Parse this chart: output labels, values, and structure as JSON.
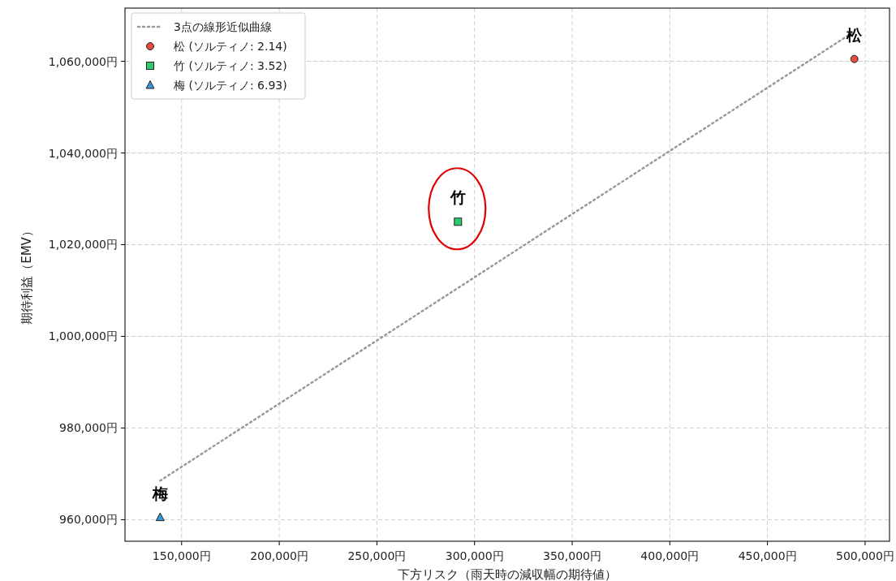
{
  "chart_data": {
    "type": "scatter",
    "xlabel": "下方リスク（雨天時の減収幅の期待値）",
    "ylabel": "期待利益（EMV）",
    "series": [
      {
        "name": "3点の線形近似曲線",
        "type": "line",
        "color": "#999999",
        "line_style": "dotted",
        "marker": "none",
        "x": [
          139000,
          494500
        ],
        "values": [
          968500,
          1066500
        ]
      },
      {
        "name": "松 (ソルティノ: 2.14)",
        "color": "#e74c3c",
        "marker": "circle",
        "x": [
          494500
        ],
        "values": [
          1060500
        ]
      },
      {
        "name": "竹 (ソルティノ: 3.52)",
        "color": "#2ecc71",
        "marker": "square",
        "x": [
          291500
        ],
        "values": [
          1025000
        ]
      },
      {
        "name": "梅 (ソルティノ: 6.93)",
        "color": "#3498db",
        "marker": "triangle",
        "x": [
          139000
        ],
        "values": [
          960500
        ]
      }
    ],
    "annotations": [
      {
        "text": "松",
        "x": 494500,
        "y": 1060500
      },
      {
        "text": "竹",
        "x": 291500,
        "y": 1025000
      },
      {
        "text": "梅",
        "x": 139000,
        "y": 960500
      }
    ],
    "xlim": [
      121000,
      512500
    ],
    "ylim": [
      955300,
      1071600
    ],
    "xticks": [
      {
        "value": 150000,
        "label": "150,000円"
      },
      {
        "value": 200000,
        "label": "200,000円"
      },
      {
        "value": 250000,
        "label": "250,000円"
      },
      {
        "value": 300000,
        "label": "300,000円"
      },
      {
        "value": 350000,
        "label": "350,000円"
      },
      {
        "value": 400000,
        "label": "400,000円"
      },
      {
        "value": 450000,
        "label": "450,000円"
      },
      {
        "value": 500000,
        "label": "500,000円"
      }
    ],
    "yticks": [
      {
        "value": 960000,
        "label": "960,000円"
      },
      {
        "value": 980000,
        "label": "980,000円"
      },
      {
        "value": 1000000,
        "label": "1,000,000円"
      },
      {
        "value": 1020000,
        "label": "1,020,000円"
      },
      {
        "value": 1040000,
        "label": "1,040,000円"
      },
      {
        "value": 1060000,
        "label": "1,060,000円"
      }
    ],
    "grid": true,
    "legend": "top left"
  }
}
